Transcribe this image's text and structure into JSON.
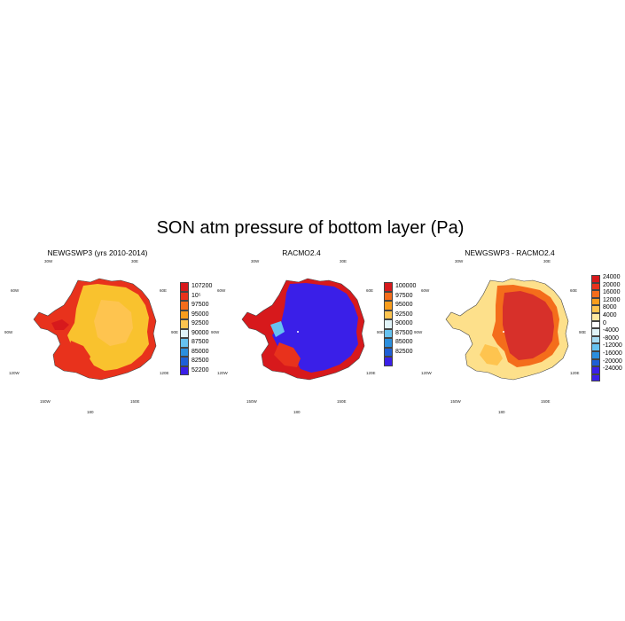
{
  "figure_title": "SON atm pressure of bottom layer (Pa)",
  "geo_labels": {
    "lon30w": "30W",
    "lon30e": "30E",
    "lon60w": "60W",
    "lon60e": "60E",
    "lon90w": "90W",
    "lon90e": "90E",
    "lon120w": "120W",
    "lon120e": "120E",
    "lon150w": "150W",
    "lon150e": "150E",
    "lon180": "180"
  },
  "panels": [
    {
      "title": "NEWGSWP3 (yrs 2010-2014)",
      "colorbar_labels": [
        "107200",
        "10⁵",
        "97500",
        "95000",
        "92500",
        "90000",
        "87500",
        "85000",
        "82500",
        "52200"
      ],
      "colorbar_colors": [
        "#d7191c",
        "#e8321c",
        "#f46d1b",
        "#f99d1d",
        "#fec44f",
        "#e0f3f8",
        "#66c2f0",
        "#2b8fde",
        "#1e5fd6",
        "#3a1fe8"
      ]
    },
    {
      "title": "RACMO2.4",
      "colorbar_labels": [
        "100000",
        "97500",
        "95000",
        "92500",
        "90000",
        "87500",
        "85000",
        "82500"
      ],
      "colorbar_colors": [
        "#d7191c",
        "#f46d1b",
        "#f99d1d",
        "#fec44f",
        "#e0f3f8",
        "#66c2f0",
        "#2b8fde",
        "#1e5fd6",
        "#3a1fe8"
      ]
    },
    {
      "title": "NEWGSWP3 - RACMO2.4",
      "colorbar_labels": [
        "24000",
        "20000",
        "16000",
        "12000",
        "8000",
        "4000",
        "0",
        "-4000",
        "-8000",
        "-12000",
        "-16000",
        "-20000",
        "-24000"
      ],
      "colorbar_colors": [
        "#d7191c",
        "#e8321c",
        "#f46d1b",
        "#f99d1d",
        "#fec44f",
        "#fee8a0",
        "#ffffff",
        "#e0f3f8",
        "#a6dcf4",
        "#66c2f0",
        "#2b8fde",
        "#1e5fd6",
        "#3a1fe8",
        "#3a1fe8"
      ]
    }
  ],
  "colors": {
    "panel1_land": "#f9c22e",
    "panel1_edge": "#e8321c",
    "panel2_land": "#3a1fe8",
    "panel2_edge": "#d7191c",
    "panel3_land": "#d7302a",
    "panel3_edge": "#fde08b"
  }
}
